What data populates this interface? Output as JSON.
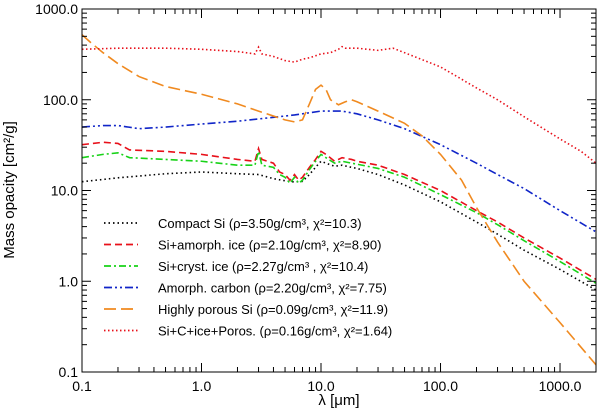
{
  "chart_data": {
    "type": "line",
    "title": "",
    "xlabel": "λ [μm]",
    "ylabel": "Mass opacity [cm²/g]",
    "xscale": "log",
    "yscale": "log",
    "xlim": [
      0.1,
      2000
    ],
    "ylim": [
      0.1,
      1000
    ],
    "x_ticks": [
      {
        "value": 0.1,
        "label": "0.1"
      },
      {
        "value": 1,
        "label": "1.0"
      },
      {
        "value": 10,
        "label": "10.0"
      },
      {
        "value": 100,
        "label": "100.0"
      },
      {
        "value": 1000,
        "label": "1000.0"
      }
    ],
    "y_ticks": [
      {
        "value": 0.1,
        "label": "0.1"
      },
      {
        "value": 1,
        "label": "1.0"
      },
      {
        "value": 10,
        "label": "10.0"
      },
      {
        "value": 100,
        "label": "100.0"
      },
      {
        "value": 1000,
        "label": "1000.0"
      }
    ],
    "legend_position": "bottom-left",
    "series": [
      {
        "name": "Compact Si",
        "legend": {
          "label": "Compact Si",
          "params": "(ρ=3.50g/cm³, χ²=10.3)"
        },
        "color": "#000000",
        "dash": "1.5,3",
        "points": [
          [
            0.1,
            12.5
          ],
          [
            0.2,
            13.8
          ],
          [
            0.5,
            15.3
          ],
          [
            1,
            16
          ],
          [
            2,
            15.3
          ],
          [
            3,
            15
          ],
          [
            4,
            13.5
          ],
          [
            5,
            12.8
          ],
          [
            6,
            12.4
          ],
          [
            7,
            12.6
          ],
          [
            8,
            15
          ],
          [
            9,
            18
          ],
          [
            10,
            21
          ],
          [
            11,
            20
          ],
          [
            13,
            18.5
          ],
          [
            15,
            19
          ],
          [
            18,
            18
          ],
          [
            20,
            17.5
          ],
          [
            30,
            15
          ],
          [
            50,
            11.5
          ],
          [
            100,
            7.5
          ],
          [
            200,
            4.5
          ],
          [
            300,
            3.3
          ],
          [
            500,
            2.2
          ],
          [
            1000,
            1.35
          ],
          [
            2000,
            0.8
          ]
        ]
      },
      {
        "name": "Si+amorph. ice",
        "legend": {
          "label": "Si+amorph. ice",
          "params": "(ρ=2.10g/cm³, χ²=8.90)"
        },
        "color": "#e8101a",
        "dash": "7,4",
        "points": [
          [
            0.1,
            32
          ],
          [
            0.15,
            34
          ],
          [
            0.2,
            33
          ],
          [
            0.25,
            28
          ],
          [
            0.5,
            27
          ],
          [
            1,
            25
          ],
          [
            2,
            22
          ],
          [
            2.8,
            21
          ],
          [
            3,
            29
          ],
          [
            3.2,
            22
          ],
          [
            4,
            20
          ],
          [
            4.5,
            16
          ],
          [
            5,
            15
          ],
          [
            5.5,
            13
          ],
          [
            6,
            15
          ],
          [
            6.5,
            13
          ],
          [
            7,
            14
          ],
          [
            8,
            18
          ],
          [
            9,
            22
          ],
          [
            10,
            27
          ],
          [
            11,
            25
          ],
          [
            13,
            21
          ],
          [
            15,
            23
          ],
          [
            18,
            22
          ],
          [
            20,
            21
          ],
          [
            30,
            19
          ],
          [
            50,
            15
          ],
          [
            100,
            10
          ],
          [
            200,
            6
          ],
          [
            300,
            4.5
          ],
          [
            500,
            3
          ],
          [
            1000,
            1.8
          ],
          [
            2000,
            1.05
          ]
        ]
      },
      {
        "name": "Si+cryst. ice",
        "legend": {
          "label": "Si+cryst. ice",
          "params": "(ρ=2.27g/cm³ , χ²=10.4)"
        },
        "color": "#18d218",
        "dash": "7,3,2,3",
        "points": [
          [
            0.1,
            23
          ],
          [
            0.15,
            25
          ],
          [
            0.2,
            26
          ],
          [
            0.25,
            23
          ],
          [
            0.5,
            22
          ],
          [
            1,
            21
          ],
          [
            2,
            19
          ],
          [
            2.8,
            19
          ],
          [
            3,
            27
          ],
          [
            3.2,
            19
          ],
          [
            4,
            18
          ],
          [
            4.5,
            15
          ],
          [
            5,
            14
          ],
          [
            5.5,
            12
          ],
          [
            6,
            14
          ],
          [
            6.5,
            12
          ],
          [
            7,
            13
          ],
          [
            8,
            17
          ],
          [
            9,
            21
          ],
          [
            10,
            25
          ],
          [
            11,
            23
          ],
          [
            13,
            20
          ],
          [
            15,
            21
          ],
          [
            18,
            20
          ],
          [
            20,
            19.5
          ],
          [
            30,
            17.5
          ],
          [
            50,
            14
          ],
          [
            100,
            9
          ],
          [
            200,
            5.7
          ],
          [
            300,
            4.2
          ],
          [
            500,
            2.8
          ],
          [
            1000,
            1.65
          ],
          [
            2000,
            0.95
          ]
        ]
      },
      {
        "name": "Amorph. carbon",
        "legend": {
          "label": "Amorph. carbon",
          "params": "(ρ=2.20g/cm³, χ²=7.75)"
        },
        "color": "#1025c8",
        "dash": "8,3,2,3,2,3",
        "points": [
          [
            0.1,
            50
          ],
          [
            0.15,
            52
          ],
          [
            0.2,
            52
          ],
          [
            0.3,
            48
          ],
          [
            0.5,
            50
          ],
          [
            1,
            54
          ],
          [
            2,
            58
          ],
          [
            4,
            64
          ],
          [
            6,
            68
          ],
          [
            10,
            75
          ],
          [
            15,
            75
          ],
          [
            20,
            70
          ],
          [
            30,
            60
          ],
          [
            50,
            48
          ],
          [
            100,
            32
          ],
          [
            200,
            20
          ],
          [
            300,
            15
          ],
          [
            500,
            10.5
          ],
          [
            1000,
            6
          ],
          [
            2000,
            3.5
          ]
        ]
      },
      {
        "name": "Highly porous Si",
        "legend": {
          "label": "Highly porous Si",
          "params": "(ρ=0.09g/cm³, χ²=11.9)"
        },
        "color": "#f08a20",
        "dash": "12,5",
        "points": [
          [
            0.1,
            520
          ],
          [
            0.12,
            420
          ],
          [
            0.15,
            330
          ],
          [
            0.2,
            250
          ],
          [
            0.3,
            180
          ],
          [
            0.5,
            140
          ],
          [
            1,
            115
          ],
          [
            2,
            90
          ],
          [
            3,
            75
          ],
          [
            5,
            60
          ],
          [
            6,
            57
          ],
          [
            7,
            60
          ],
          [
            8,
            90
          ],
          [
            9,
            130
          ],
          [
            10,
            145
          ],
          [
            11,
            130
          ],
          [
            12,
            100
          ],
          [
            14,
            88
          ],
          [
            16,
            95
          ],
          [
            18,
            100
          ],
          [
            20,
            95
          ],
          [
            30,
            75
          ],
          [
            50,
            55
          ],
          [
            70,
            40
          ],
          [
            100,
            25
          ],
          [
            150,
            13
          ],
          [
            200,
            6.5
          ],
          [
            300,
            2.7
          ],
          [
            500,
            1
          ],
          [
            1000,
            0.35
          ],
          [
            2000,
            0.12
          ]
        ]
      },
      {
        "name": "Si+C+ice+Poros.",
        "legend": {
          "label": "Si+C+ice+Poros.",
          "params": "(ρ=0.16g/cm³, χ²=1.64)"
        },
        "color": "#e8101a",
        "dash": "1.5,2.5",
        "points": [
          [
            0.1,
            360
          ],
          [
            0.2,
            370
          ],
          [
            0.5,
            370
          ],
          [
            1,
            360
          ],
          [
            2,
            340
          ],
          [
            2.8,
            320
          ],
          [
            3,
            380
          ],
          [
            3.2,
            320
          ],
          [
            4,
            300
          ],
          [
            5,
            270
          ],
          [
            6,
            260
          ],
          [
            7,
            280
          ],
          [
            8,
            290
          ],
          [
            10,
            320
          ],
          [
            12,
            330
          ],
          [
            14,
            360
          ],
          [
            15,
            385
          ],
          [
            16,
            370
          ],
          [
            20,
            370
          ],
          [
            30,
            350
          ],
          [
            40,
            370
          ],
          [
            50,
            330
          ],
          [
            100,
            230
          ],
          [
            200,
            135
          ],
          [
            300,
            100
          ],
          [
            500,
            65
          ],
          [
            1000,
            37
          ],
          [
            1500,
            27
          ],
          [
            2000,
            20
          ]
        ]
      }
    ]
  }
}
